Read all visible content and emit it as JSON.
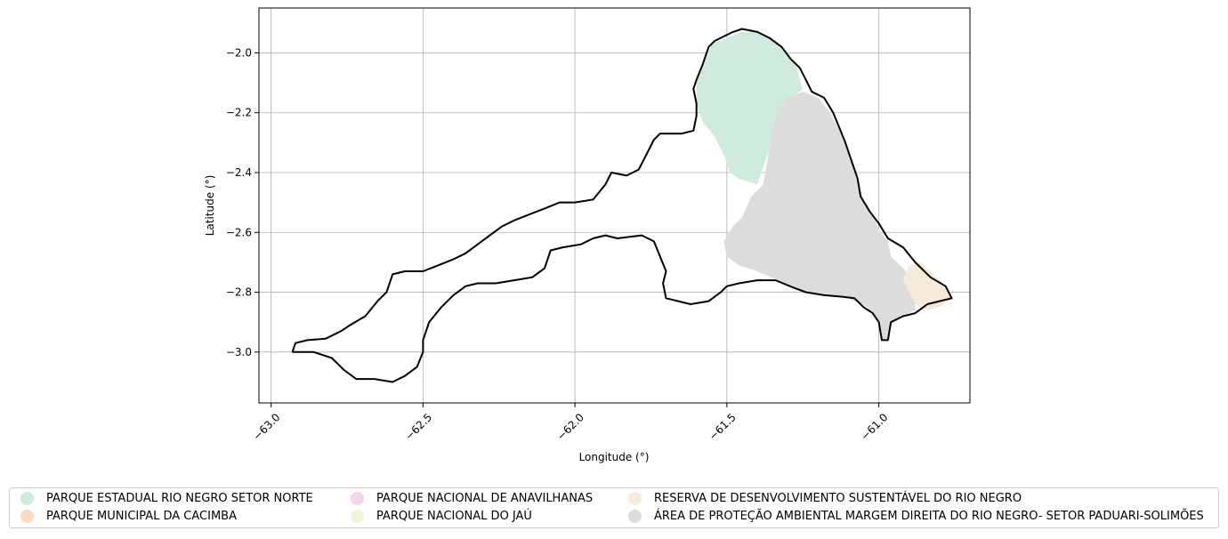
{
  "chart_data": {
    "type": "map",
    "xlabel": "Longitude (°)",
    "ylabel": "Latitude (°)",
    "xlim": [
      -63.04,
      -60.7
    ],
    "ylim": [
      -3.17,
      -1.85
    ],
    "xticks": [
      -63.0,
      -62.5,
      -62.0,
      -61.5,
      -61.0
    ],
    "xtick_labels": [
      "−63.0",
      "−62.5",
      "−62.0",
      "−61.5",
      "−61.0"
    ],
    "yticks": [
      -2.0,
      -2.2,
      -2.4,
      -2.6,
      -2.8,
      -3.0
    ],
    "ytick_labels": [
      "−2.0",
      "−2.2",
      "−2.4",
      "−2.6",
      "−2.8",
      "−3.0"
    ],
    "grid": true,
    "legend_position": "bottom",
    "outline": [
      [
        -62.93,
        -3.0
      ],
      [
        -62.92,
        -2.97
      ],
      [
        -62.88,
        -2.96
      ],
      [
        -62.82,
        -2.955
      ],
      [
        -62.77,
        -2.93
      ],
      [
        -62.74,
        -2.91
      ],
      [
        -62.69,
        -2.88
      ],
      [
        -62.65,
        -2.83
      ],
      [
        -62.62,
        -2.8
      ],
      [
        -62.6,
        -2.74
      ],
      [
        -62.56,
        -2.73
      ],
      [
        -62.5,
        -2.73
      ],
      [
        -62.45,
        -2.71
      ],
      [
        -62.4,
        -2.69
      ],
      [
        -62.36,
        -2.67
      ],
      [
        -62.32,
        -2.64
      ],
      [
        -62.28,
        -2.61
      ],
      [
        -62.24,
        -2.58
      ],
      [
        -62.2,
        -2.56
      ],
      [
        -62.15,
        -2.54
      ],
      [
        -62.1,
        -2.52
      ],
      [
        -62.05,
        -2.5
      ],
      [
        -62.0,
        -2.5
      ],
      [
        -61.94,
        -2.49
      ],
      [
        -61.9,
        -2.44
      ],
      [
        -61.88,
        -2.4
      ],
      [
        -61.83,
        -2.41
      ],
      [
        -61.79,
        -2.39
      ],
      [
        -61.76,
        -2.33
      ],
      [
        -61.74,
        -2.29
      ],
      [
        -61.72,
        -2.27
      ],
      [
        -61.68,
        -2.27
      ],
      [
        -61.65,
        -2.27
      ],
      [
        -61.61,
        -2.26
      ],
      [
        -61.6,
        -2.21
      ],
      [
        -61.6,
        -2.17
      ],
      [
        -61.61,
        -2.12
      ],
      [
        -61.6,
        -2.09
      ],
      [
        -61.58,
        -2.04
      ],
      [
        -61.56,
        -1.98
      ],
      [
        -61.54,
        -1.96
      ],
      [
        -61.52,
        -1.95
      ],
      [
        -61.48,
        -1.93
      ],
      [
        -61.45,
        -1.92
      ],
      [
        -61.4,
        -1.93
      ],
      [
        -61.36,
        -1.95
      ],
      [
        -61.32,
        -1.98
      ],
      [
        -61.29,
        -2.02
      ],
      [
        -61.26,
        -2.05
      ],
      [
        -61.24,
        -2.09
      ],
      [
        -61.22,
        -2.13
      ],
      [
        -61.18,
        -2.15
      ],
      [
        -61.15,
        -2.2
      ],
      [
        -61.13,
        -2.25
      ],
      [
        -61.11,
        -2.3
      ],
      [
        -61.09,
        -2.36
      ],
      [
        -61.07,
        -2.42
      ],
      [
        -61.06,
        -2.48
      ],
      [
        -61.03,
        -2.53
      ],
      [
        -61.0,
        -2.57
      ],
      [
        -60.97,
        -2.62
      ],
      [
        -60.92,
        -2.65
      ],
      [
        -60.88,
        -2.7
      ],
      [
        -60.83,
        -2.75
      ],
      [
        -60.78,
        -2.78
      ],
      [
        -60.76,
        -2.82
      ],
      [
        -60.8,
        -2.83
      ],
      [
        -60.84,
        -2.84
      ],
      [
        -60.88,
        -2.87
      ],
      [
        -60.92,
        -2.88
      ],
      [
        -60.96,
        -2.9
      ],
      [
        -60.97,
        -2.96
      ],
      [
        -60.99,
        -2.96
      ],
      [
        -61.0,
        -2.9
      ],
      [
        -61.02,
        -2.87
      ],
      [
        -61.05,
        -2.85
      ],
      [
        -61.08,
        -2.82
      ],
      [
        -61.12,
        -2.815
      ],
      [
        -61.18,
        -2.81
      ],
      [
        -61.24,
        -2.8
      ],
      [
        -61.28,
        -2.785
      ],
      [
        -61.34,
        -2.76
      ],
      [
        -61.4,
        -2.76
      ],
      [
        -61.46,
        -2.77
      ],
      [
        -61.5,
        -2.78
      ],
      [
        -61.52,
        -2.8
      ],
      [
        -61.56,
        -2.83
      ],
      [
        -61.62,
        -2.84
      ],
      [
        -61.66,
        -2.83
      ],
      [
        -61.7,
        -2.82
      ],
      [
        -61.71,
        -2.77
      ],
      [
        -61.7,
        -2.73
      ],
      [
        -61.72,
        -2.68
      ],
      [
        -61.74,
        -2.63
      ],
      [
        -61.78,
        -2.61
      ],
      [
        -61.82,
        -2.615
      ],
      [
        -61.86,
        -2.62
      ],
      [
        -61.9,
        -2.61
      ],
      [
        -61.94,
        -2.62
      ],
      [
        -61.98,
        -2.64
      ],
      [
        -62.04,
        -2.65
      ],
      [
        -62.08,
        -2.66
      ],
      [
        -62.1,
        -2.72
      ],
      [
        -62.14,
        -2.75
      ],
      [
        -62.2,
        -2.76
      ],
      [
        -62.26,
        -2.77
      ],
      [
        -62.32,
        -2.77
      ],
      [
        -62.36,
        -2.78
      ],
      [
        -62.4,
        -2.81
      ],
      [
        -62.44,
        -2.85
      ],
      [
        -62.48,
        -2.9
      ],
      [
        -62.5,
        -2.96
      ],
      [
        -62.5,
        -3.0
      ],
      [
        -62.52,
        -3.05
      ],
      [
        -62.56,
        -3.08
      ],
      [
        -62.6,
        -3.1
      ],
      [
        -62.66,
        -3.09
      ],
      [
        -62.72,
        -3.09
      ],
      [
        -62.76,
        -3.06
      ],
      [
        -62.8,
        -3.02
      ],
      [
        -62.86,
        -3.0
      ],
      [
        -62.93,
        -3.0
      ]
    ],
    "regions": [
      {
        "key": "rio_negro_norte",
        "color": "#cfebdd",
        "polygon": [
          [
            -61.58,
            -2.05
          ],
          [
            -61.55,
            -1.97
          ],
          [
            -61.5,
            -1.95
          ],
          [
            -61.45,
            -1.93
          ],
          [
            -61.39,
            -1.93
          ],
          [
            -61.34,
            -1.96
          ],
          [
            -61.3,
            -2.0
          ],
          [
            -61.27,
            -2.05
          ],
          [
            -61.25,
            -2.12
          ],
          [
            -61.3,
            -2.16
          ],
          [
            -61.34,
            -2.25
          ],
          [
            -61.36,
            -2.32
          ],
          [
            -61.38,
            -2.38
          ],
          [
            -61.4,
            -2.44
          ],
          [
            -61.46,
            -2.42
          ],
          [
            -61.49,
            -2.4
          ],
          [
            -61.51,
            -2.34
          ],
          [
            -61.54,
            -2.28
          ],
          [
            -61.58,
            -2.23
          ],
          [
            -61.6,
            -2.17
          ],
          [
            -61.6,
            -2.1
          ]
        ]
      },
      {
        "key": "apa_paduari",
        "color": "#dcdcdc",
        "polygon": [
          [
            -61.3,
            -2.15
          ],
          [
            -61.25,
            -2.13
          ],
          [
            -61.2,
            -2.15
          ],
          [
            -61.16,
            -2.2
          ],
          [
            -61.13,
            -2.26
          ],
          [
            -61.11,
            -2.31
          ],
          [
            -61.09,
            -2.37
          ],
          [
            -61.07,
            -2.43
          ],
          [
            -61.05,
            -2.49
          ],
          [
            -61.02,
            -2.54
          ],
          [
            -61.0,
            -2.59
          ],
          [
            -60.97,
            -2.63
          ],
          [
            -60.96,
            -2.68
          ],
          [
            -60.92,
            -2.72
          ],
          [
            -60.88,
            -2.76
          ],
          [
            -60.88,
            -2.86
          ],
          [
            -60.92,
            -2.88
          ],
          [
            -60.96,
            -2.9
          ],
          [
            -60.97,
            -2.96
          ],
          [
            -60.99,
            -2.96
          ],
          [
            -61.0,
            -2.9
          ],
          [
            -61.02,
            -2.87
          ],
          [
            -61.05,
            -2.84
          ],
          [
            -61.12,
            -2.815
          ],
          [
            -61.2,
            -2.805
          ],
          [
            -61.26,
            -2.79
          ],
          [
            -61.33,
            -2.76
          ],
          [
            -61.4,
            -2.73
          ],
          [
            -61.46,
            -2.71
          ],
          [
            -61.5,
            -2.68
          ],
          [
            -61.51,
            -2.63
          ],
          [
            -61.48,
            -2.58
          ],
          [
            -61.45,
            -2.55
          ],
          [
            -61.42,
            -2.48
          ],
          [
            -61.38,
            -2.44
          ],
          [
            -61.36,
            -2.32
          ],
          [
            -61.35,
            -2.25
          ],
          [
            -61.33,
            -2.19
          ]
        ]
      },
      {
        "key": "rds_rio_negro",
        "color": "#f8ead8",
        "polygon": [
          [
            -60.9,
            -2.71
          ],
          [
            -60.86,
            -2.7
          ],
          [
            -60.82,
            -2.74
          ],
          [
            -60.78,
            -2.78
          ],
          [
            -60.76,
            -2.82
          ],
          [
            -60.8,
            -2.85
          ],
          [
            -60.84,
            -2.86
          ],
          [
            -60.88,
            -2.84
          ],
          [
            -60.9,
            -2.8
          ],
          [
            -60.92,
            -2.76
          ]
        ]
      }
    ],
    "legend": [
      {
        "label": "PARQUE ESTADUAL RIO NEGRO SETOR NORTE",
        "color": "#cfebdd"
      },
      {
        "label": "PARQUE MUNICIPAL DA CACIMBA",
        "color": "#fdd9bd"
      },
      {
        "label": "PARQUE NACIONAL DE ANAVILHANAS",
        "color": "#f5d5ec"
      },
      {
        "label": "PARQUE NACIONAL DO JAÚ",
        "color": "#eef6d8"
      },
      {
        "label": "RESERVA DE DESENVOLVIMENTO SUSTENTÁVEL DO RIO NEGRO",
        "color": "#f8ead8"
      },
      {
        "label": "ÁREA DE PROTEÇÃO AMBIENTAL MARGEM DIREITA DO RIO NEGRO- SETOR PADUARI-SOLIMÕES",
        "color": "#dcdcdc"
      }
    ]
  }
}
